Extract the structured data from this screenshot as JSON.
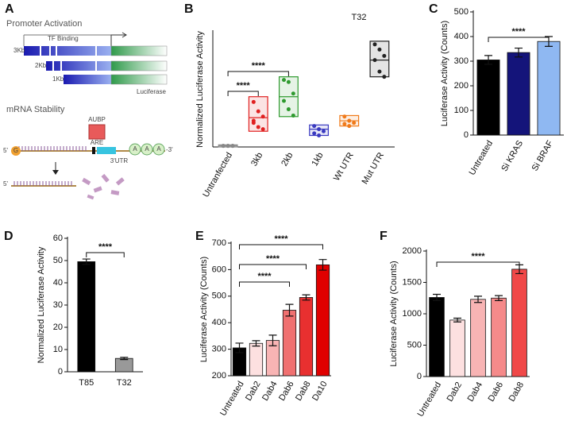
{
  "diagram": {
    "panel_label": "A",
    "promoter_title": "Promoter Activation",
    "tf_label": "TF Binding",
    "constructs": [
      "3Kb",
      "2Kb",
      "1Kb"
    ],
    "reporter_label": "Luciferase",
    "stability_title": "mRNA Stability",
    "aubp_label": "AUBP",
    "are_label": "ARE",
    "utr_label": "3'UTR",
    "cap_label": "G",
    "five_prime": "5'",
    "three_prime": "-3'",
    "poly_a": [
      "A",
      "A",
      "A"
    ],
    "degraded_five_prime": "5'"
  },
  "chart_data": [
    {
      "type": "box",
      "panel_label": "B",
      "title": "T32",
      "y_label": "Normalized Luciferase Activity",
      "categories": [
        "Untranfected",
        "3kb",
        "2kb",
        "1kb",
        "Wt UTR",
        "Mut UTR"
      ],
      "colors": [
        "#888888",
        "#e02020",
        "#2f9a2f",
        "#3a3ac0",
        "#f07a1a",
        "#222222"
      ],
      "boxes": [
        {
          "low": 0,
          "mid": 1,
          "high": 2,
          "points": [
            1,
            1,
            1,
            1,
            1,
            1
          ]
        },
        {
          "low": 15,
          "mid": 28,
          "high": 48,
          "points": [
            43,
            34,
            29,
            25,
            19,
            17,
            23
          ]
        },
        {
          "low": 29,
          "mid": 48,
          "high": 67,
          "points": [
            64,
            62,
            51,
            44,
            36,
            30
          ]
        },
        {
          "low": 11,
          "mid": 17,
          "high": 21,
          "points": [
            20,
            17,
            15,
            13,
            11
          ]
        },
        {
          "low": 20,
          "mid": 25,
          "high": 30,
          "points": [
            29,
            25,
            23,
            22,
            20
          ]
        },
        {
          "low": 67,
          "mid": 83,
          "high": 101,
          "points": [
            98,
            93,
            87,
            83,
            72,
            67
          ]
        }
      ],
      "ylim": [
        0,
        110
      ],
      "brackets": [
        {
          "label": "****",
          "between": [
            "Untranfected",
            "3kb"
          ]
        },
        {
          "label": "****",
          "between": [
            "Untranfected",
            "2kb"
          ]
        }
      ]
    },
    {
      "type": "bar",
      "panel_label": "C",
      "y_label": "Luciferase Activity (Counts)",
      "categories": [
        "Untreated",
        "Si KRAS",
        "Si BRAF"
      ],
      "values": [
        305,
        335,
        380
      ],
      "errors": [
        18,
        18,
        20
      ],
      "colors": [
        "#000000",
        "#14147a",
        "#8fb8f2"
      ],
      "ylim": [
        0,
        500
      ],
      "yticks": [
        0,
        100,
        200,
        300,
        400,
        500
      ],
      "brackets": [
        {
          "label": "****",
          "between": [
            "Untreated",
            "Si BRAF"
          ]
        }
      ]
    },
    {
      "type": "bar",
      "panel_label": "D",
      "y_label": "Normalized Luciferase Activity",
      "categories": [
        "T85",
        "T32"
      ],
      "values": [
        49.5,
        6
      ],
      "errors": [
        1.2,
        0.5
      ],
      "colors": [
        "#000000",
        "#999999"
      ],
      "ylim": [
        0,
        60
      ],
      "yticks": [
        0,
        10,
        20,
        30,
        40,
        50,
        60
      ],
      "brackets": [
        {
          "label": "****",
          "between": [
            "T85",
            "T32"
          ]
        }
      ]
    },
    {
      "type": "bar",
      "panel_label": "E",
      "y_label": "Luciferase Activity (Counts)",
      "categories": [
        "Untreated",
        "Dab2",
        "Dab4",
        "Dab6",
        "Dab8",
        "Da10"
      ],
      "values": [
        305,
        322,
        333,
        447,
        495,
        618
      ],
      "errors": [
        18,
        10,
        20,
        22,
        10,
        20
      ],
      "colors": [
        "#000000",
        "#fde0e0",
        "#f8b4b4",
        "#f07070",
        "#e83030",
        "#e00000"
      ],
      "ylim": [
        200,
        700
      ],
      "yticks": [
        200,
        300,
        400,
        500,
        600,
        700
      ],
      "brackets": [
        {
          "label": "****",
          "between": [
            "Untreated",
            "Dab6"
          ]
        },
        {
          "label": "****",
          "between": [
            "Untreated",
            "Dab8"
          ]
        },
        {
          "label": "****",
          "between": [
            "Untreated",
            "Da10"
          ]
        }
      ]
    },
    {
      "type": "bar",
      "panel_label": "F",
      "y_label": "Luciferase Activity (Counts)",
      "categories": [
        "Untreated",
        "Dab2",
        "Dab4",
        "Dab6",
        "Dab8"
      ],
      "values": [
        1260,
        900,
        1230,
        1250,
        1710
      ],
      "errors": [
        50,
        30,
        50,
        40,
        70
      ],
      "colors": [
        "#000000",
        "#fde0e0",
        "#f8b4b4",
        "#f58a8a",
        "#f04848"
      ],
      "ylim": [
        0,
        2000
      ],
      "yticks": [
        0,
        500,
        1000,
        1500,
        2000
      ],
      "brackets": [
        {
          "label": "****",
          "between": [
            "Untreated",
            "Dab8"
          ]
        }
      ]
    }
  ]
}
